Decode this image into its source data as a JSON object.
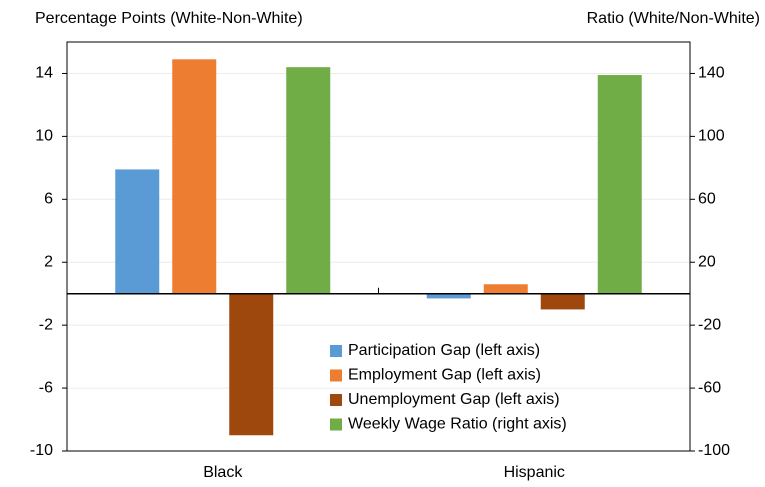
{
  "chart_data": {
    "type": "bar",
    "ylabel": "Percentage Points (White-Non-White)",
    "y2label": "Ratio (White/Non-White)",
    "categories": [
      "Black",
      "Hispanic"
    ],
    "series": [
      {
        "name": "Participation Gap (left axis)",
        "color": "#5b9bd5",
        "values": [
          7.9,
          -0.3
        ]
      },
      {
        "name": "Employment Gap (left axis)",
        "color": "#ed7d31",
        "values": [
          14.9,
          0.6
        ]
      },
      {
        "name": "Unemployment Gap (left axis)",
        "color": "#9e480e",
        "values": [
          -9.0,
          -1.0
        ]
      },
      {
        "name": "Weekly Wage Ratio (right axis)",
        "color": "#70ad47",
        "values": [
          144,
          139
        ],
        "axis": "y2"
      }
    ],
    "ylim": [
      -10,
      16
    ],
    "yticks": [
      -10,
      -6,
      -2,
      2,
      6,
      10,
      14
    ],
    "y2lim": [
      -100,
      160
    ],
    "y2ticks": [
      -100,
      -60,
      -20,
      20,
      60,
      100,
      140
    ],
    "grid": true,
    "legend": "lower right"
  }
}
